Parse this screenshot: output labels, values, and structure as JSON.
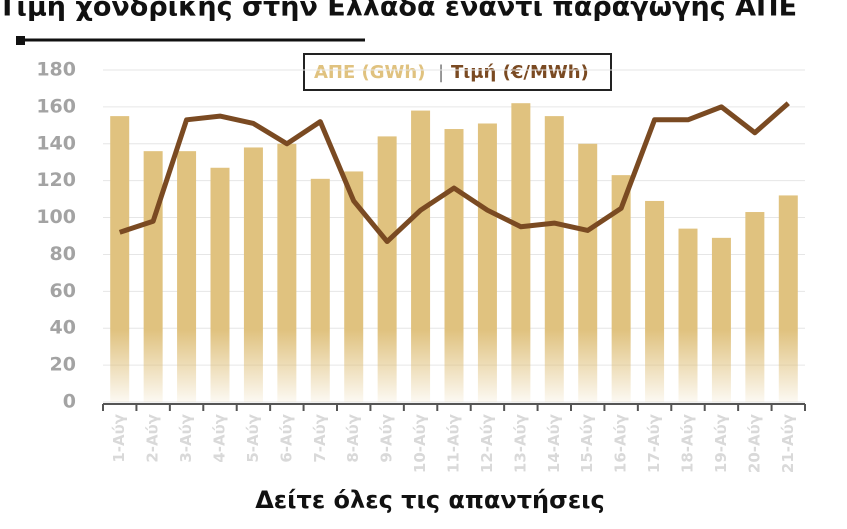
{
  "chart_data": {
    "type": "bar_line",
    "title": "Τιμή χονδρικής στην Ελλάδα έναντι παραγωγής ΑΠΕ",
    "categories": [
      "1-Αύγ",
      "2-Αύγ",
      "3-Αύγ",
      "4-Αύγ",
      "5-Αύγ",
      "6-Αύγ",
      "7-Αύγ",
      "8-Αύγ",
      "9-Αύγ",
      "10-Αύγ",
      "11-Αύγ",
      "12-Αύγ",
      "13-Αύγ",
      "14-Αύγ",
      "15-Αύγ",
      "16-Αύγ",
      "17-Αύγ",
      "18-Αύγ",
      "19-Αύγ",
      "20-Αύγ",
      "21-Αύγ"
    ],
    "series": [
      {
        "name": "ΑΠΕ (GWh)",
        "color": "#e0c27f",
        "type": "bar",
        "values": [
          155,
          136,
          136,
          127,
          138,
          140,
          121,
          125,
          144,
          158,
          148,
          151,
          162,
          155,
          140,
          123,
          109,
          94,
          89,
          103,
          112
        ]
      },
      {
        "name": "Τιμή (€/MWh)",
        "color": "#7a4a22",
        "type": "line",
        "values": [
          92,
          98,
          153,
          155,
          151,
          140,
          152,
          109,
          87,
          104,
          116,
          104,
          95,
          97,
          93,
          105,
          153,
          153,
          160,
          146,
          162
        ]
      }
    ],
    "ylim": [
      0,
      180
    ],
    "yticks": [
      0,
      20,
      40,
      60,
      80,
      100,
      120,
      140,
      160,
      180
    ],
    "grid": true,
    "caption": "Δείτε όλες τις απαντήσεις"
  }
}
